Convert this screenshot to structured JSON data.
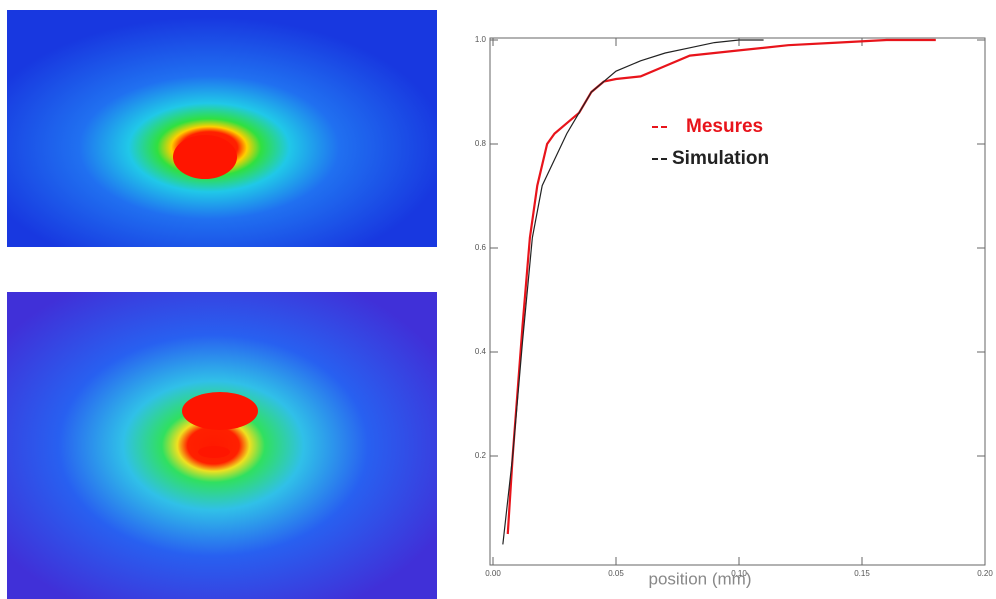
{
  "chart_data": {
    "type": "line",
    "xlabel": "position (mm)",
    "xlim": [
      0,
      0.2
    ],
    "xticks": [
      {
        "value": 0,
        "label": "0.00"
      },
      {
        "value": 0.05,
        "label": "0.05"
      },
      {
        "value": 0.1,
        "label": "0.10"
      },
      {
        "value": 0.15,
        "label": "0.15"
      },
      {
        "value": 0.2,
        "label": "0.20"
      }
    ],
    "ylim": [
      0,
      1
    ],
    "yticks": [
      0.2,
      0.4,
      0.6,
      0.8,
      {
        "value": 1,
        "label": "1.0"
      }
    ],
    "series": [
      {
        "name": "Mesures",
        "color": "#e8141b",
        "x": [
          0.006,
          0.008,
          0.012,
          0.015,
          0.018,
          0.022,
          0.025,
          0.03,
          0.035,
          0.04,
          0.045,
          0.05,
          0.06,
          0.07,
          0.08,
          0.09,
          0.1,
          0.12,
          0.14,
          0.16,
          0.18
        ],
        "values": [
          0.05,
          0.2,
          0.45,
          0.62,
          0.72,
          0.8,
          0.82,
          0.84,
          0.86,
          0.9,
          0.92,
          0.925,
          0.93,
          0.95,
          0.97,
          0.975,
          0.98,
          0.99,
          0.995,
          1,
          1
        ]
      },
      {
        "name": "Simulation",
        "color": "#222222",
        "x": [
          0.004,
          0.008,
          0.012,
          0.016,
          0.02,
          0.025,
          0.03,
          0.035,
          0.04,
          0.05,
          0.06,
          0.07,
          0.08,
          0.09,
          0.1,
          0.11
        ],
        "values": [
          0.03,
          0.2,
          0.42,
          0.62,
          0.72,
          0.77,
          0.82,
          0.86,
          0.9,
          0.94,
          0.96,
          0.975,
          0.985,
          0.995,
          1,
          1
        ]
      }
    ]
  }
}
